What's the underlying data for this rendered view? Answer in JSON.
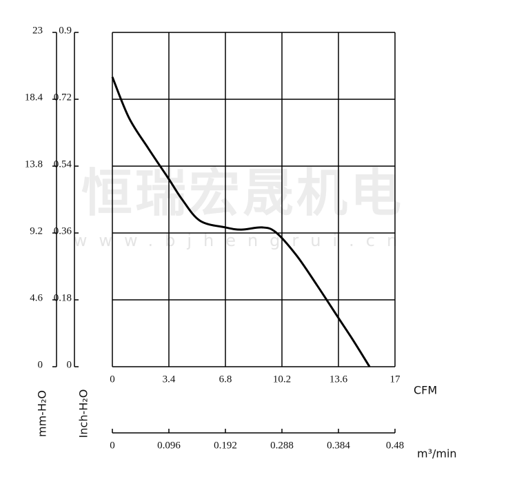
{
  "chart_data": {
    "type": "line",
    "x": [
      0,
      1,
      2.16,
      3.4,
      4.2,
      5.27,
      6.8,
      7.75,
      9,
      9.83,
      11.07,
      12.3,
      13.56,
      14.5,
      15.47
    ],
    "series": [
      {
        "name": null,
        "color": "#000000",
        "values": [
          0.78,
          0.67,
          0.588,
          0.505,
          0.45,
          0.393,
          0.375,
          0.369,
          0.375,
          0.362,
          0.3,
          0.22,
          0.134,
          0.07,
          0
        ]
      }
    ],
    "xlim": [
      0,
      17
    ],
    "xticks": [
      0,
      3.4,
      6.8,
      10.2,
      13.6,
      17
    ],
    "xlabel": "CFM",
    "x2lim": [
      0,
      0.48
    ],
    "x2ticks": [
      0,
      0.096,
      0.192,
      0.288,
      0.384,
      0.48
    ],
    "x2label": "m³/min",
    "ylim": [
      0,
      0.9
    ],
    "yticks": [
      0,
      0.18,
      0.36,
      0.54,
      0.72,
      0.9
    ],
    "ylabel": "Inch-H₂O",
    "y2lim": [
      0,
      23
    ],
    "y2ticks": [
      0,
      4.6,
      9.2,
      13.8,
      18.4,
      23
    ],
    "y2label": "mm-H₂O",
    "grid": true,
    "watermark": [
      "恒瑞宏晟机电",
      "www.bjhengrui.cn"
    ]
  }
}
